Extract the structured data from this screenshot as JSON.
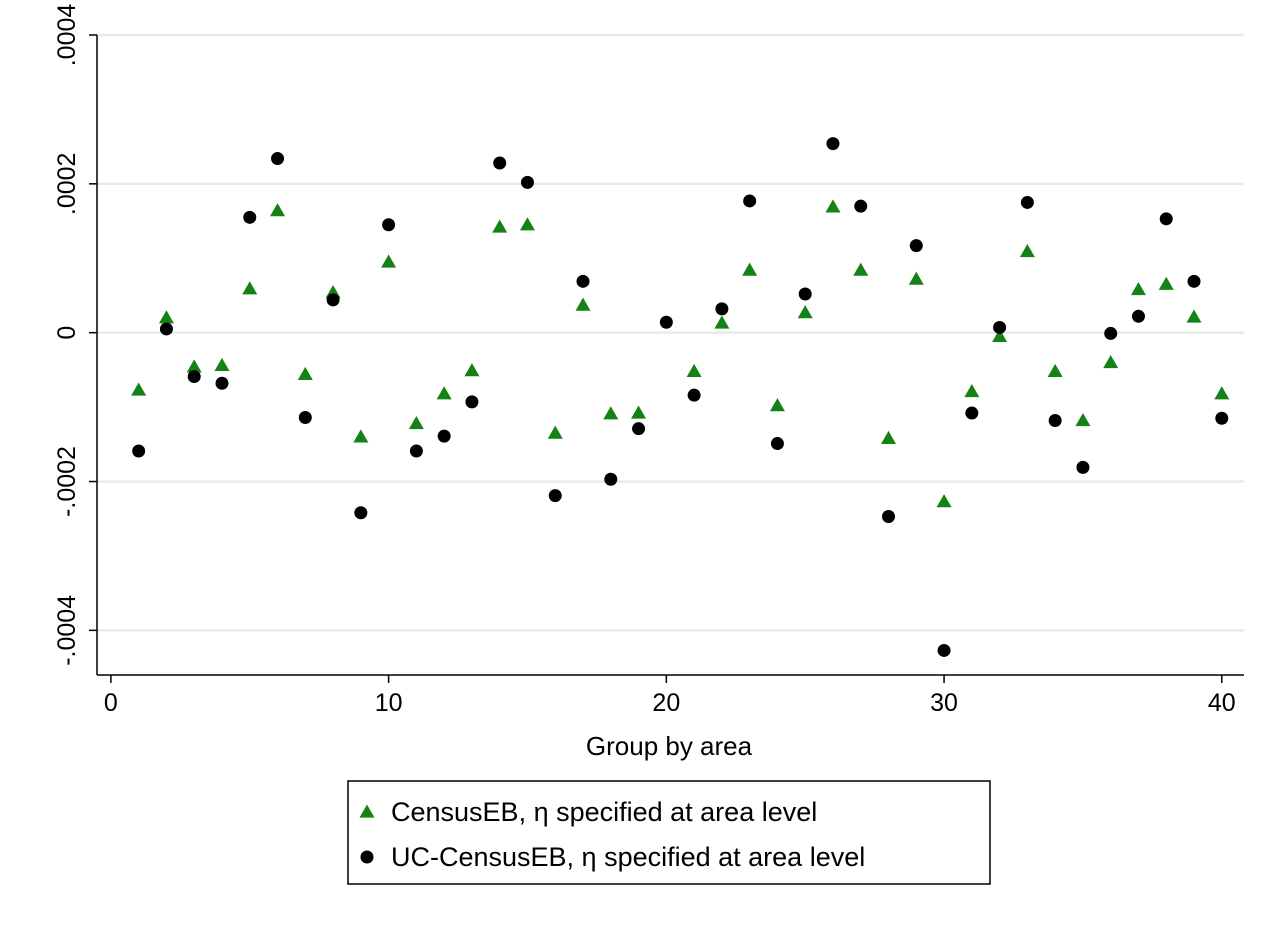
{
  "chart_data": {
    "type": "scatter",
    "title": "",
    "xlabel": "Group by area",
    "ylabel": "",
    "xlim": [
      -0.5,
      40.8
    ],
    "ylim": [
      -0.00046,
      0.0004
    ],
    "xticks": [
      {
        "value": 0,
        "label": "0"
      },
      {
        "value": 10,
        "label": "10"
      },
      {
        "value": 20,
        "label": "20"
      },
      {
        "value": 30,
        "label": "30"
      },
      {
        "value": 40,
        "label": "40"
      }
    ],
    "yticks": [
      {
        "value": -0.0004,
        "label": "-.0004"
      },
      {
        "value": -0.0002,
        "label": "-.0002"
      },
      {
        "value": 0,
        "label": "0"
      },
      {
        "value": 0.0002,
        "label": ".0002"
      },
      {
        "value": 0.0004,
        "label": ".0004"
      }
    ],
    "grid": "horizontal",
    "legend": "bottom",
    "x": [
      1,
      2,
      3,
      4,
      5,
      6,
      7,
      8,
      9,
      10,
      11,
      12,
      13,
      14,
      15,
      16,
      17,
      18,
      19,
      20,
      21,
      22,
      23,
      24,
      25,
      26,
      27,
      28,
      29,
      30,
      31,
      32,
      33,
      34,
      35,
      36,
      37,
      38,
      39,
      40
    ],
    "series": [
      {
        "name": "CensusEB, η specified at area level",
        "marker": "triangle",
        "color": "#148214",
        "values": [
          -7.7e-05,
          2e-05,
          -4.6e-05,
          -4.4e-05,
          5.9e-05,
          0.000164,
          -5.6e-05,
          5.4e-05,
          -0.00014,
          9.5e-05,
          -0.000122,
          -8.2e-05,
          -5.1e-05,
          0.000142,
          0.000145,
          -0.000135,
          3.7e-05,
          -0.000109,
          -0.000108,
          null,
          -5.2e-05,
          1.3e-05,
          8.4e-05,
          -9.8e-05,
          2.7e-05,
          0.000169,
          8.4e-05,
          -0.000142,
          7.2e-05,
          -0.000227,
          -7.9e-05,
          -5e-06,
          0.000109,
          -5.2e-05,
          -0.000118,
          -4e-05,
          5.8e-05,
          6.5e-05,
          2.1e-05,
          -8.2e-05
        ]
      },
      {
        "name": "UC-CensusEB, η specified at area level",
        "marker": "circle",
        "color": "#000000",
        "values": [
          -0.000159,
          5e-06,
          -5.9e-05,
          -6.8e-05,
          0.000155,
          0.000234,
          -0.000114,
          4.4e-05,
          -0.000242,
          0.000145,
          -0.000159,
          -0.000139,
          -9.3e-05,
          0.000228,
          0.000202,
          -0.000219,
          6.9e-05,
          -0.000197,
          -0.000129,
          1.4e-05,
          -8.4e-05,
          3.2e-05,
          0.000177,
          -0.000149,
          5.2e-05,
          0.000254,
          0.00017,
          -0.000247,
          0.000117,
          -0.000427,
          -0.000108,
          7e-06,
          0.000175,
          -0.000118,
          -0.000181,
          -1e-06,
          2.2e-05,
          0.000153,
          6.9e-05,
          -0.000115
        ]
      }
    ]
  }
}
